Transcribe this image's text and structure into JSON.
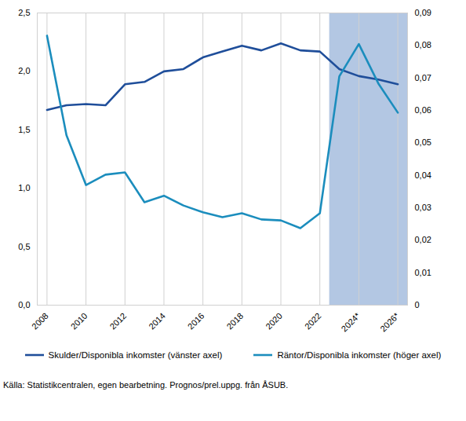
{
  "chart_data": {
    "type": "line",
    "x": [
      2008,
      2009,
      2010,
      2011,
      2012,
      2013,
      2014,
      2015,
      2016,
      2017,
      2018,
      2019,
      2020,
      2021,
      2022,
      2023,
      2024,
      2025,
      2026
    ],
    "xlim": [
      2007.5,
      2026.5
    ],
    "xticks": [
      2008,
      2010,
      2012,
      2014,
      2016,
      2018,
      2020,
      2022,
      {
        "value": 2024,
        "label": "2024*"
      },
      {
        "value": 2026,
        "label": "2026*"
      }
    ],
    "ylim": [
      0,
      2.5
    ],
    "yticks": [
      {
        "value": 0,
        "label": "0,0"
      },
      {
        "value": 0.5,
        "label": "0,5"
      },
      {
        "value": 1,
        "label": "1,0"
      },
      {
        "value": 1.5,
        "label": "1,5"
      },
      {
        "value": 2,
        "label": "2,0"
      },
      {
        "value": 2.5,
        "label": "2,5"
      }
    ],
    "y2lim": [
      0,
      0.09
    ],
    "y2ticks": [
      0,
      {
        "value": 0.01,
        "label": "0,01"
      },
      {
        "value": 0.02,
        "label": "0,02"
      },
      {
        "value": 0.03,
        "label": "0,03"
      },
      {
        "value": 0.04,
        "label": "0,04"
      },
      {
        "value": 0.05,
        "label": "0,05"
      },
      {
        "value": 0.06,
        "label": "0,06"
      },
      {
        "value": 0.07,
        "label": "0,07"
      },
      {
        "value": 0.08,
        "label": "0,08"
      },
      {
        "value": 0.09,
        "label": "0,09"
      }
    ],
    "grid": true,
    "legend": "bottom",
    "forecast_period": [
      2022.5,
      2026.5
    ],
    "series": [
      {
        "name": "Skulder/Disponibla inkomster (vänster axel)",
        "color": "#1f4e9a",
        "values": [
          1.67,
          1.71,
          1.72,
          1.71,
          1.89,
          1.91,
          2.0,
          2.02,
          2.12,
          2.17,
          2.22,
          2.18,
          2.24,
          2.18,
          2.17,
          2.02,
          1.96,
          1.93,
          1.89
        ]
      },
      {
        "name": "Räntor/Disponibla inkomster (höger axel)",
        "color": "#1b8dbd",
        "axis": "y2",
        "values": [
          0.083,
          0.0523,
          0.037,
          0.0402,
          0.0409,
          0.0317,
          0.0337,
          0.0307,
          0.0286,
          0.0271,
          0.0283,
          0.0264,
          0.0261,
          0.0237,
          0.0283,
          0.0705,
          0.0804,
          0.0683,
          0.0593
        ]
      }
    ],
    "caption": "Källa: Statistikcentralen, egen bearbetning. Prognos/prel.uppg. från ÅSUB."
  }
}
